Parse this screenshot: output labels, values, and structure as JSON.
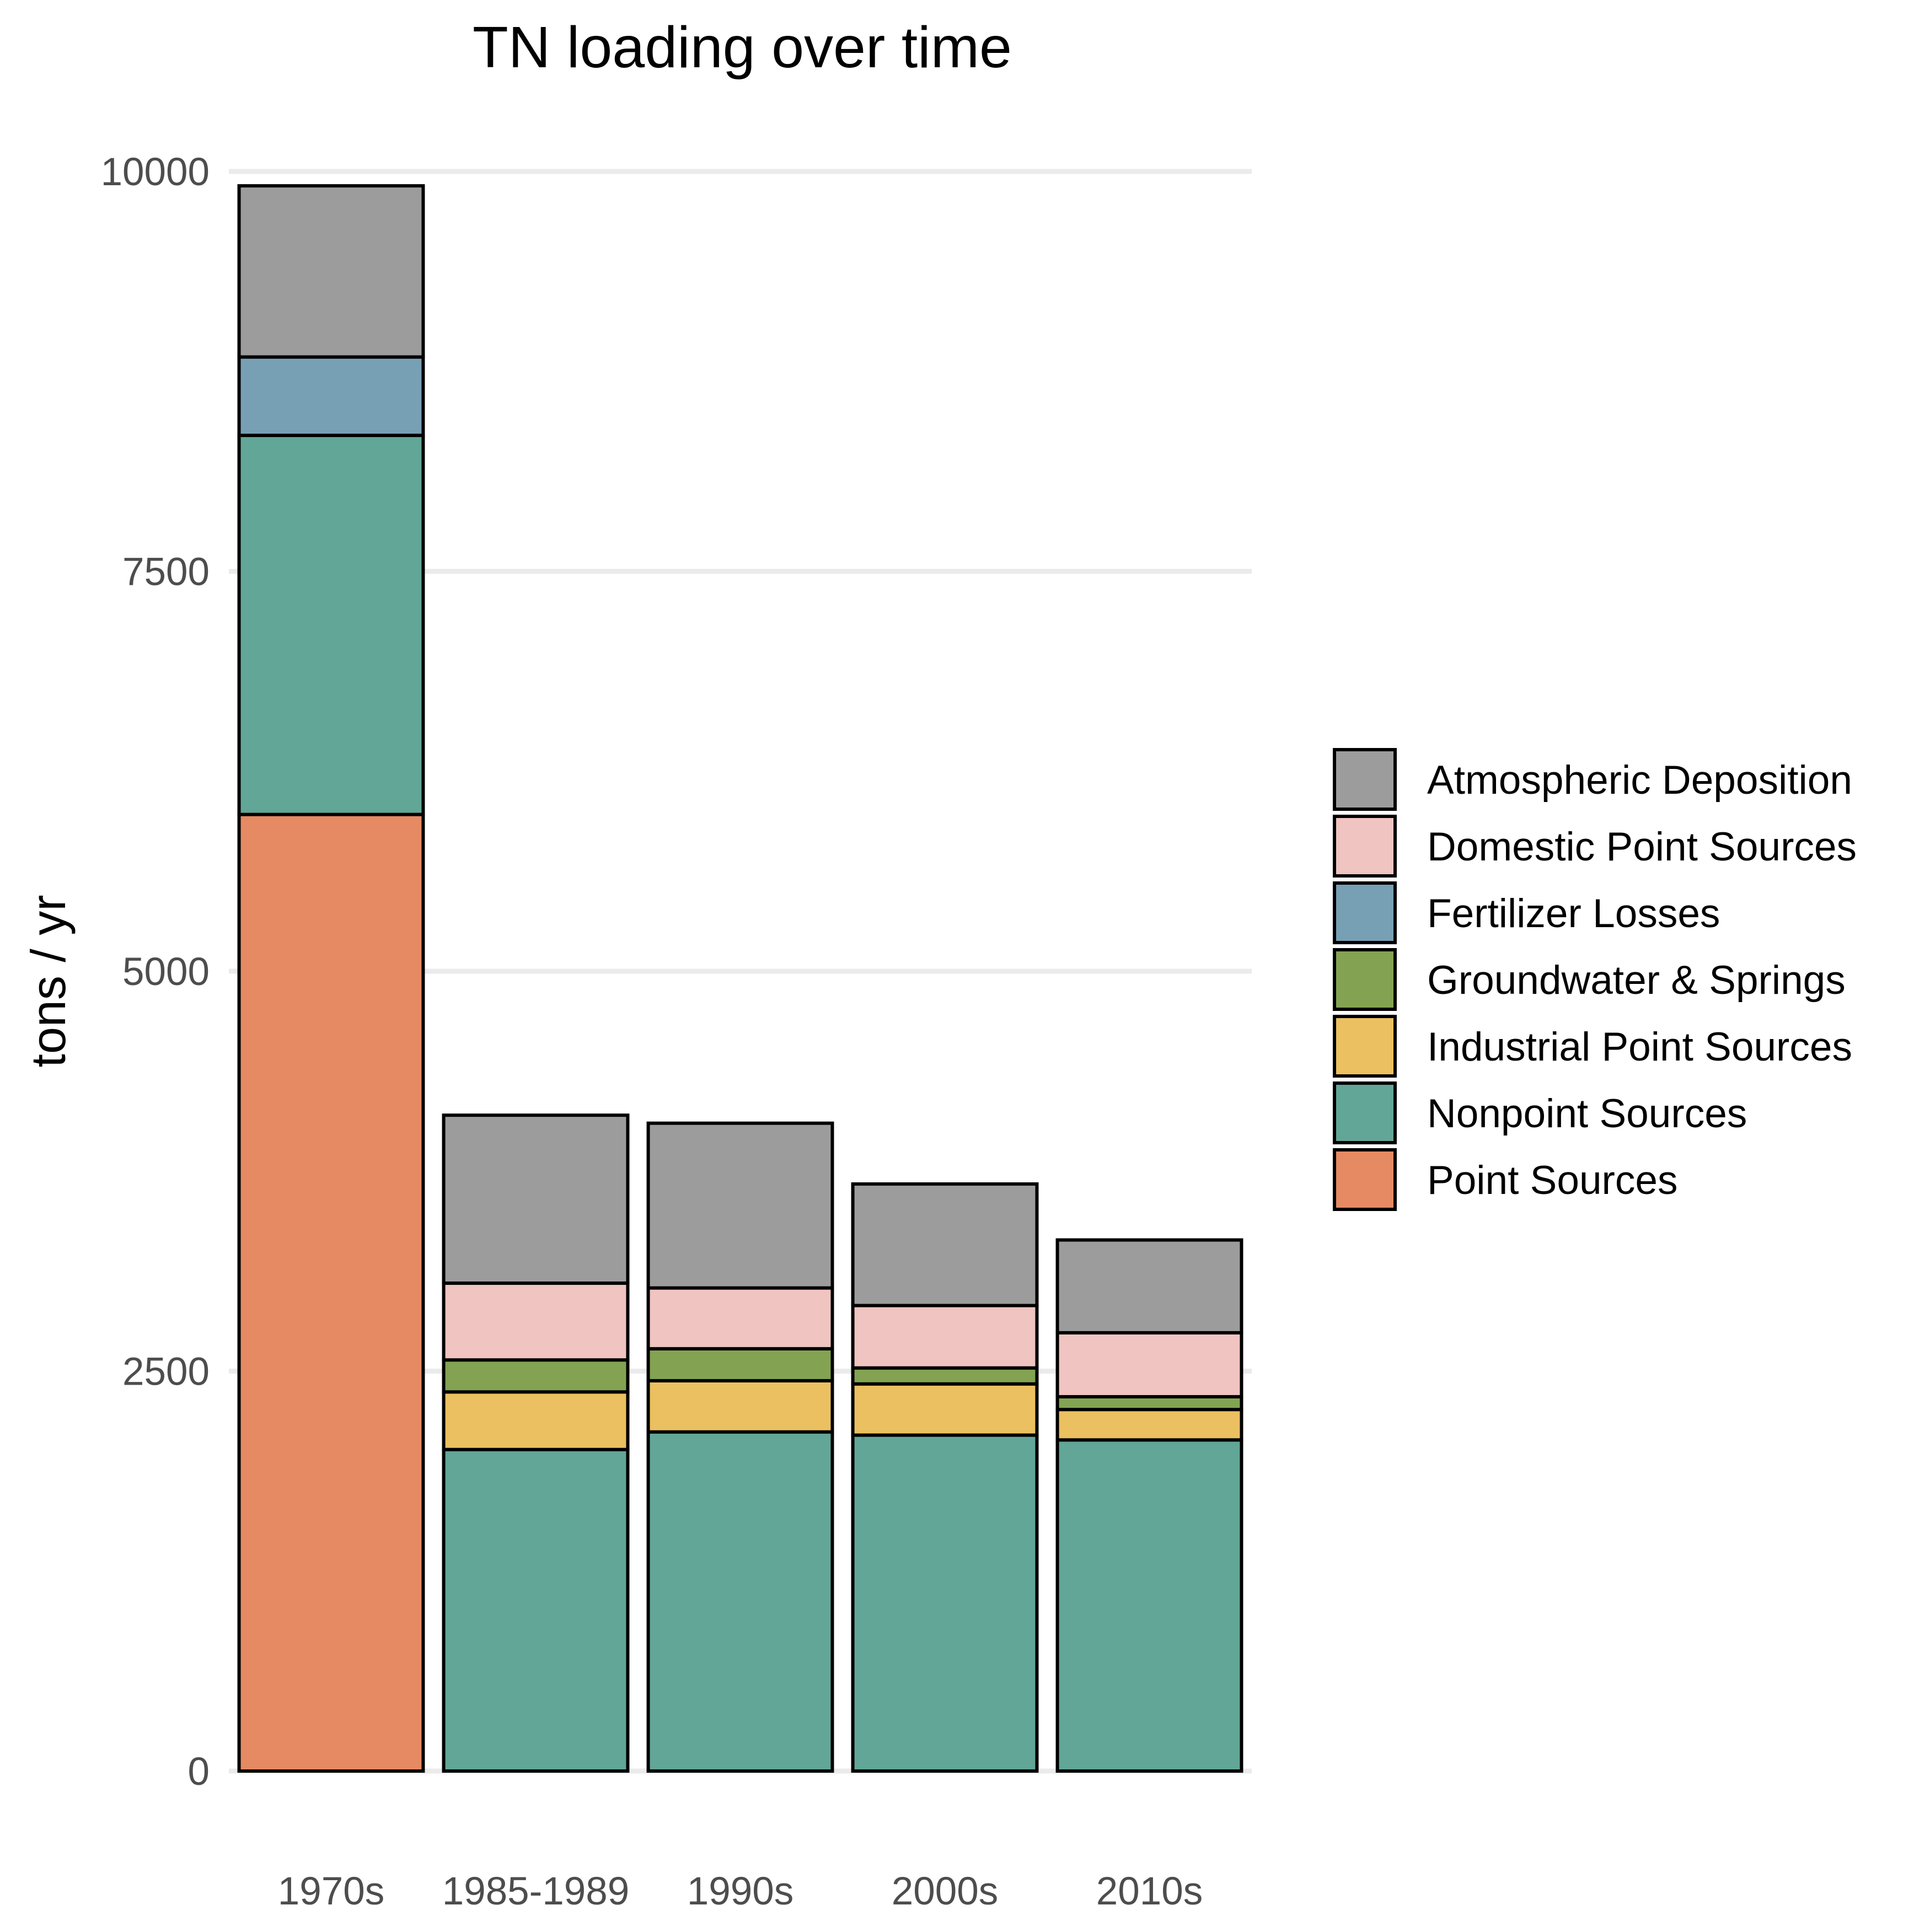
{
  "chart_data": {
    "type": "bar",
    "stacked": true,
    "title": "TN loading over time",
    "xlabel": "",
    "ylabel": "tons / yr",
    "ylim": [
      0,
      10000
    ],
    "yticks": [
      0,
      2500,
      5000,
      7500,
      10000
    ],
    "grid": "horizontal major gridlines",
    "legend_position": "right",
    "categories": [
      "1970s",
      "1985-1989",
      "1990s",
      "2000s",
      "2010s"
    ],
    "series": [
      {
        "name": "Point Sources",
        "color": "#E58A63",
        "values": [
          5980,
          0,
          0,
          0,
          0
        ]
      },
      {
        "name": "Nonpoint Sources",
        "color": "#62A697",
        "values": [
          2370,
          2010,
          2120,
          2100,
          2070
        ]
      },
      {
        "name": "Industrial Point Sources",
        "color": "#EBC060",
        "values": [
          0,
          360,
          320,
          320,
          190
        ]
      },
      {
        "name": "Groundwater & Springs",
        "color": "#83A352",
        "values": [
          0,
          200,
          200,
          100,
          80
        ]
      },
      {
        "name": "Fertilizer Losses",
        "color": "#77A0B4",
        "values": [
          490,
          0,
          0,
          0,
          0
        ]
      },
      {
        "name": "Domestic Point Sources",
        "color": "#EFC4C1",
        "values": [
          0,
          480,
          380,
          390,
          400
        ]
      },
      {
        "name": "Atmospheric Deposition",
        "color": "#9C9C9C",
        "values": [
          1070,
          1050,
          1030,
          760,
          580
        ]
      }
    ],
    "legend_order": [
      "Atmospheric Deposition",
      "Domestic Point Sources",
      "Fertilizer Losses",
      "Groundwater & Springs",
      "Industrial Point Sources",
      "Nonpoint Sources",
      "Point Sources"
    ]
  }
}
